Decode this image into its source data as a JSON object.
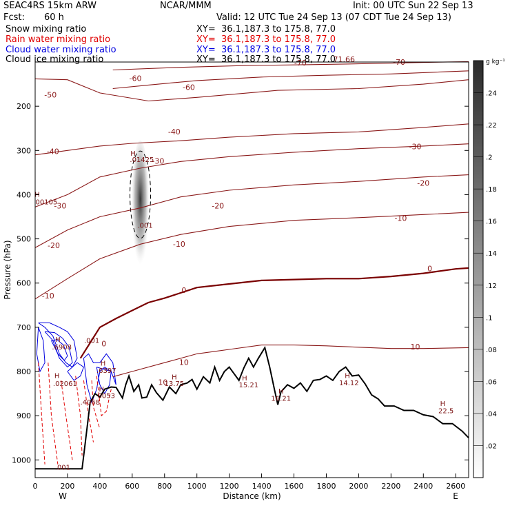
{
  "header": {
    "model": "SEAC4RS 15km ARW",
    "org": "NCAR/MMM",
    "init": "Init: 00 UTC Sun 22 Sep 13",
    "fcst_label": "Fcst:",
    "fcst_value": "60 h",
    "valid": "Valid: 12 UTC Tue 24 Sep 13 (07 CDT Tue 24 Sep 13)"
  },
  "fields": [
    {
      "name": "Snow mixing ratio",
      "xy": "XY=  36.1,187.3 to 175.8, 77.0",
      "color": "#000000"
    },
    {
      "name": "Rain water mixing ratio",
      "xy": "XY=  36.1,187.3 to 175.8, 77.0",
      "color": "#e00000"
    },
    {
      "name": "Cloud water mixing ratio",
      "xy": "XY=  36.1,187.3 to 175.8, 77.0",
      "color": "#0000e0"
    },
    {
      "name": "Cloud ice mixing ratio",
      "xy": "XY=  36.1,187.3 to 175.8, 77.0",
      "color": "#000000"
    }
  ],
  "colors": {
    "isotherm": "#8b1a1a",
    "zero_isotherm": "#7a0000",
    "terrain": "#000000",
    "rain": "#e00000",
    "cloud": "#0000e0"
  },
  "chart_data": {
    "type": "line",
    "xlabel": "Distance (km)",
    "ylabel": "Pressure (hPa)",
    "xlim": [
      0,
      2680
    ],
    "ylim": [
      1040,
      100
    ],
    "x_ticks": [
      "0",
      "200",
      "400",
      "600",
      "800",
      "1000",
      "1200",
      "1400",
      "1600",
      "1800",
      "2000",
      "2200",
      "2400",
      "2600"
    ],
    "y_ticks": [
      "200",
      "300",
      "400",
      "500",
      "600",
      "700",
      "800",
      "900",
      "1000"
    ],
    "x_end_labels": [
      "W",
      "E"
    ],
    "colorbar": {
      "unit": "g kg⁻¹",
      "ticks": [
        ".02",
        ".04",
        ".06",
        ".08",
        ".1",
        ".12",
        ".14",
        ".16",
        ".18",
        ".2",
        ".22",
        ".24"
      ],
      "range": [
        0,
        0.26
      ]
    },
    "isotherms": [
      {
        "temp": -70,
        "points": [
          [
            480,
            118
          ],
          [
            900,
            112
          ],
          [
            1300,
            108
          ],
          [
            1700,
            106
          ],
          [
            2000,
            104
          ],
          [
            2400,
            101
          ],
          [
            2680,
            99
          ]
        ]
      },
      {
        "temp": -60,
        "points": [
          [
            480,
            160
          ],
          [
            700,
            152
          ],
          [
            1000,
            142
          ],
          [
            1400,
            134
          ],
          [
            1800,
            130
          ],
          [
            2200,
            127
          ],
          [
            2680,
            120
          ]
        ]
      },
      {
        "temp": -50,
        "points": [
          [
            0,
            138
          ],
          [
            200,
            140
          ],
          [
            400,
            170
          ],
          [
            700,
            188
          ],
          [
            1000,
            180
          ],
          [
            1500,
            164
          ],
          [
            2000,
            160
          ],
          [
            2400,
            150
          ],
          [
            2680,
            140
          ]
        ]
      },
      {
        "temp": -40,
        "points": [
          [
            0,
            310
          ],
          [
            200,
            300
          ],
          [
            400,
            290
          ],
          [
            600,
            284
          ],
          [
            900,
            278
          ],
          [
            1200,
            270
          ],
          [
            1600,
            262
          ],
          [
            2000,
            258
          ],
          [
            2400,
            248
          ],
          [
            2680,
            240
          ]
        ]
      },
      {
        "temp": -30,
        "points": [
          [
            0,
            428
          ],
          [
            200,
            400
          ],
          [
            400,
            360
          ],
          [
            650,
            340
          ],
          [
            900,
            325
          ],
          [
            1200,
            314
          ],
          [
            1600,
            304
          ],
          [
            2000,
            296
          ],
          [
            2400,
            290
          ],
          [
            2680,
            285
          ]
        ]
      },
      {
        "temp": -20,
        "points": [
          [
            0,
            520
          ],
          [
            200,
            480
          ],
          [
            400,
            450
          ],
          [
            650,
            430
          ],
          [
            900,
            405
          ],
          [
            1200,
            390
          ],
          [
            1600,
            378
          ],
          [
            2000,
            370
          ],
          [
            2400,
            360
          ],
          [
            2680,
            355
          ]
        ]
      },
      {
        "temp": -10,
        "points": [
          [
            0,
            636
          ],
          [
            200,
            590
          ],
          [
            400,
            545
          ],
          [
            650,
            512
          ],
          [
            900,
            490
          ],
          [
            1200,
            472
          ],
          [
            1600,
            458
          ],
          [
            2000,
            452
          ],
          [
            2400,
            445
          ],
          [
            2680,
            440
          ]
        ]
      },
      {
        "temp": 0,
        "points": [
          [
            280,
            770
          ],
          [
            400,
            700
          ],
          [
            500,
            680
          ],
          [
            600,
            662
          ],
          [
            700,
            644
          ],
          [
            800,
            634
          ],
          [
            1000,
            610
          ],
          [
            1200,
            602
          ],
          [
            1400,
            594
          ],
          [
            1600,
            592
          ],
          [
            1800,
            590
          ],
          [
            2000,
            590
          ],
          [
            2200,
            585
          ],
          [
            2400,
            578
          ],
          [
            2600,
            568
          ],
          [
            2680,
            566
          ]
        ]
      },
      {
        "temp": 10,
        "points": [
          [
            480,
            812
          ],
          [
            600,
            800
          ],
          [
            800,
            780
          ],
          [
            1000,
            760
          ],
          [
            1200,
            750
          ],
          [
            1400,
            740
          ],
          [
            1600,
            740
          ],
          [
            1800,
            742
          ],
          [
            2000,
            745
          ],
          [
            2200,
            748
          ],
          [
            2400,
            748
          ],
          [
            2680,
            746
          ]
        ]
      }
    ],
    "isotherm_labels": [
      {
        "text": "-70",
        "x": 1640,
        "y": 108
      },
      {
        "text": "71.66",
        "x": 1910,
        "y": 100
      },
      {
        "text": "-70",
        "x": 2250,
        "y": 106
      },
      {
        "text": "-60",
        "x": 620,
        "y": 143
      },
      {
        "text": "-60",
        "x": 950,
        "y": 163
      },
      {
        "text": "-50",
        "x": 95,
        "y": 180
      },
      {
        "text": "-40",
        "x": 860,
        "y": 264
      },
      {
        "text": "-40",
        "x": 110,
        "y": 308
      },
      {
        "text": "-30",
        "x": 760,
        "y": 330
      },
      {
        "text": "-30",
        "x": 2350,
        "y": 297
      },
      {
        "text": "-30",
        "x": 155,
        "y": 431
      },
      {
        "text": "-20",
        "x": 1130,
        "y": 431
      },
      {
        "text": "-20",
        "x": 2400,
        "y": 380
      },
      {
        "text": "-20",
        "x": 115,
        "y": 521
      },
      {
        "text": "-10",
        "x": 890,
        "y": 518
      },
      {
        "text": "-10",
        "x": 2260,
        "y": 459
      },
      {
        "text": "-10",
        "x": 80,
        "y": 635
      },
      {
        "text": "0",
        "x": 920,
        "y": 622
      },
      {
        "text": "0",
        "x": 2440,
        "y": 573
      },
      {
        "text": "0",
        "x": 425,
        "y": 743
      },
      {
        "text": "10",
        "x": 920,
        "y": 785
      },
      {
        "text": "10",
        "x": 790,
        "y": 830
      },
      {
        "text": "10",
        "x": 2350,
        "y": 750
      }
    ],
    "maxima": [
      {
        "text": "H",
        "x": 13,
        "y": 405
      },
      {
        "text": "00105",
        "x": 70,
        "y": 422
      },
      {
        "text": "H",
        "x": 605,
        "y": 312
      },
      {
        "text": ".01425",
        "x": 660,
        "y": 326
      },
      {
        "text": ".001",
        "x": 680,
        "y": 475
      },
      {
        "text": "H",
        "x": 140,
        "y": 733
      },
      {
        "text": ".6908",
        "x": 165,
        "y": 750
      },
      {
        "text": ".001",
        "x": 350,
        "y": 735
      },
      {
        "text": "H",
        "x": 420,
        "y": 787
      },
      {
        "text": ".6397",
        "x": 440,
        "y": 803
      },
      {
        "text": "H",
        "x": 135,
        "y": 815
      },
      {
        "text": ".02061",
        "x": 185,
        "y": 833
      },
      {
        "text": "H",
        "x": 410,
        "y": 845
      },
      {
        "text": "0053",
        "x": 440,
        "y": 860
      },
      {
        "text": ".4068",
        "x": 340,
        "y": 875
      },
      {
        "text": "H",
        "x": 860,
        "y": 818
      },
      {
        "text": "13.75",
        "x": 860,
        "y": 833
      },
      {
        "text": "H",
        "x": 1295,
        "y": 820
      },
      {
        "text": "15.21",
        "x": 1320,
        "y": 836
      },
      {
        "text": "H",
        "x": 1520,
        "y": 850
      },
      {
        "text": "16.21",
        "x": 1520,
        "y": 866
      },
      {
        "text": "H",
        "x": 1930,
        "y": 815
      },
      {
        "text": "14.12",
        "x": 1940,
        "y": 831
      },
      {
        "text": "H",
        "x": 2520,
        "y": 878
      },
      {
        "text": "22.5",
        "x": 2540,
        "y": 894
      },
      {
        "text": ".001",
        "x": 170,
        "y": 1022
      }
    ],
    "terrain": [
      [
        0,
        1020
      ],
      [
        100,
        1020
      ],
      [
        200,
        1020
      ],
      [
        290,
        1020
      ],
      [
        310,
        960
      ],
      [
        340,
        870
      ],
      [
        370,
        850
      ],
      [
        400,
        858
      ],
      [
        430,
        840
      ],
      [
        470,
        835
      ],
      [
        500,
        836
      ],
      [
        540,
        860
      ],
      [
        560,
        830
      ],
      [
        580,
        810
      ],
      [
        610,
        845
      ],
      [
        640,
        830
      ],
      [
        660,
        860
      ],
      [
        690,
        858
      ],
      [
        720,
        830
      ],
      [
        750,
        848
      ],
      [
        790,
        865
      ],
      [
        830,
        835
      ],
      [
        870,
        850
      ],
      [
        900,
        830
      ],
      [
        940,
        826
      ],
      [
        970,
        818
      ],
      [
        1000,
        840
      ],
      [
        1040,
        812
      ],
      [
        1080,
        826
      ],
      [
        1110,
        790
      ],
      [
        1140,
        820
      ],
      [
        1170,
        800
      ],
      [
        1200,
        790
      ],
      [
        1230,
        805
      ],
      [
        1260,
        820
      ],
      [
        1290,
        792
      ],
      [
        1320,
        770
      ],
      [
        1350,
        790
      ],
      [
        1380,
        770
      ],
      [
        1420,
        746
      ],
      [
        1450,
        790
      ],
      [
        1480,
        842
      ],
      [
        1500,
        875
      ],
      [
        1520,
        846
      ],
      [
        1560,
        830
      ],
      [
        1600,
        838
      ],
      [
        1640,
        826
      ],
      [
        1680,
        845
      ],
      [
        1720,
        820
      ],
      [
        1760,
        818
      ],
      [
        1800,
        810
      ],
      [
        1840,
        820
      ],
      [
        1880,
        800
      ],
      [
        1920,
        790
      ],
      [
        1960,
        810
      ],
      [
        2000,
        808
      ],
      [
        2040,
        828
      ],
      [
        2080,
        853
      ],
      [
        2120,
        862
      ],
      [
        2160,
        878
      ],
      [
        2220,
        878
      ],
      [
        2280,
        888
      ],
      [
        2340,
        888
      ],
      [
        2400,
        898
      ],
      [
        2460,
        902
      ],
      [
        2520,
        918
      ],
      [
        2580,
        918
      ],
      [
        2640,
        935
      ],
      [
        2680,
        950
      ]
    ],
    "snow_max": {
      "x": 650,
      "p_top": 265,
      "p_bottom": 560,
      "value": 0.24
    }
  }
}
